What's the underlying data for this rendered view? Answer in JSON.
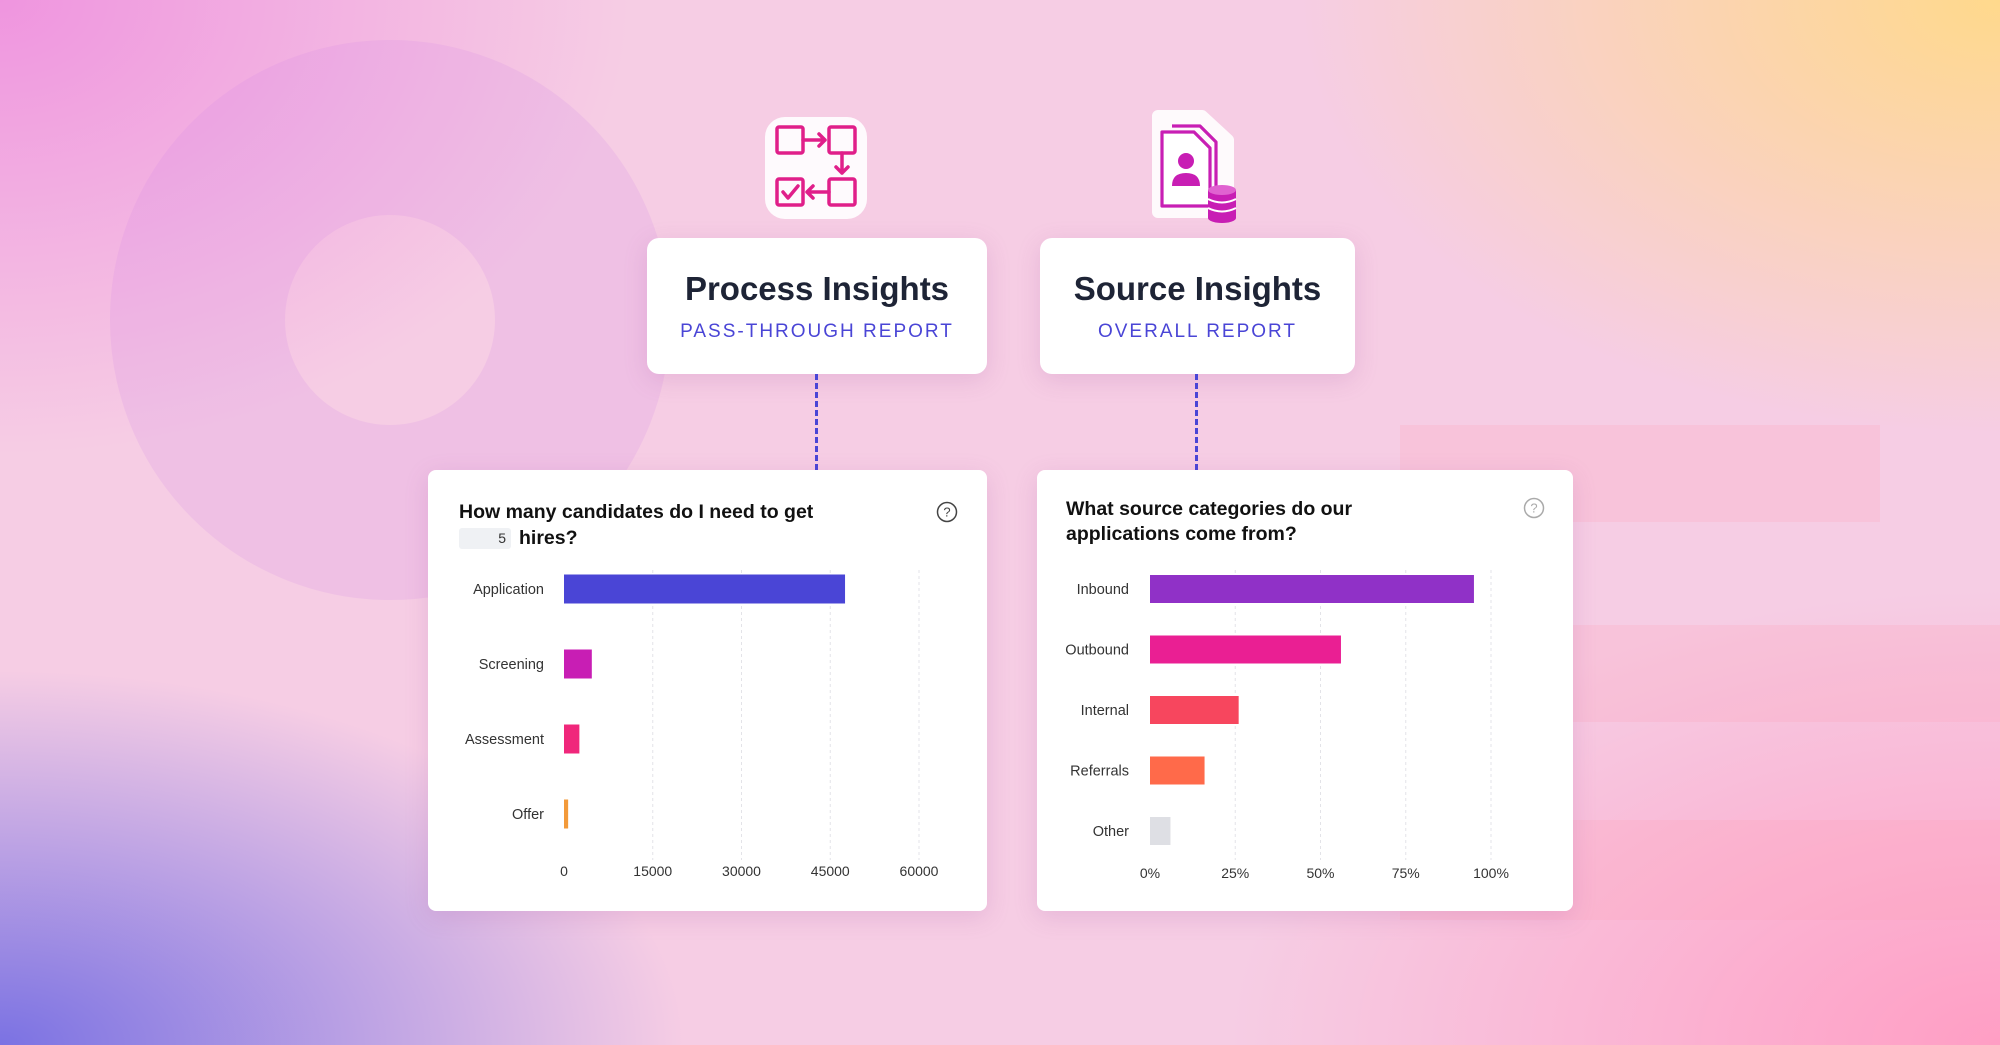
{
  "process": {
    "title": "Process Insights",
    "subtitle": "PASS-THROUGH REPORT",
    "icon": "process-flow-icon",
    "chart": {
      "question_part1": "How many candidates do I need to get",
      "hires_value": "5",
      "question_part2": "hires?"
    }
  },
  "source": {
    "title": "Source Insights",
    "subtitle": "OVERALL REPORT",
    "icon": "candidate-database-icon",
    "chart": {
      "question": "What source categories do our applications come from?"
    }
  },
  "colors": {
    "accent": "#4a45d6",
    "title_text": "#1e2436"
  },
  "chart_data": [
    {
      "type": "bar",
      "orientation": "horizontal",
      "categories": [
        "Application",
        "Screening",
        "Assessment",
        "Offer"
      ],
      "values": [
        47500,
        4700,
        2600,
        700
      ],
      "colors": [
        "#4a45d6",
        "#c81eb4",
        "#f0277b",
        "#f39a3a"
      ],
      "xticks": [
        "0",
        "15000",
        "30000",
        "45000",
        "60000"
      ],
      "xlim": [
        0,
        60000
      ],
      "grid": true,
      "title": "How many candidates do I need to get 5 hires?"
    },
    {
      "type": "bar",
      "orientation": "horizontal",
      "categories": [
        "Inbound",
        "Outbound",
        "Internal",
        "Referrals",
        "Other"
      ],
      "values": [
        95,
        56,
        26,
        16,
        6
      ],
      "colors": [
        "#9031c7",
        "#ea1f93",
        "#f7465e",
        "#ff6a4a",
        "#dedfe4"
      ],
      "xticks": [
        "0%",
        "25%",
        "50%",
        "75%",
        "100%"
      ],
      "xlim": [
        0,
        100
      ],
      "grid": true,
      "title": "What source categories do our applications come from?"
    }
  ]
}
